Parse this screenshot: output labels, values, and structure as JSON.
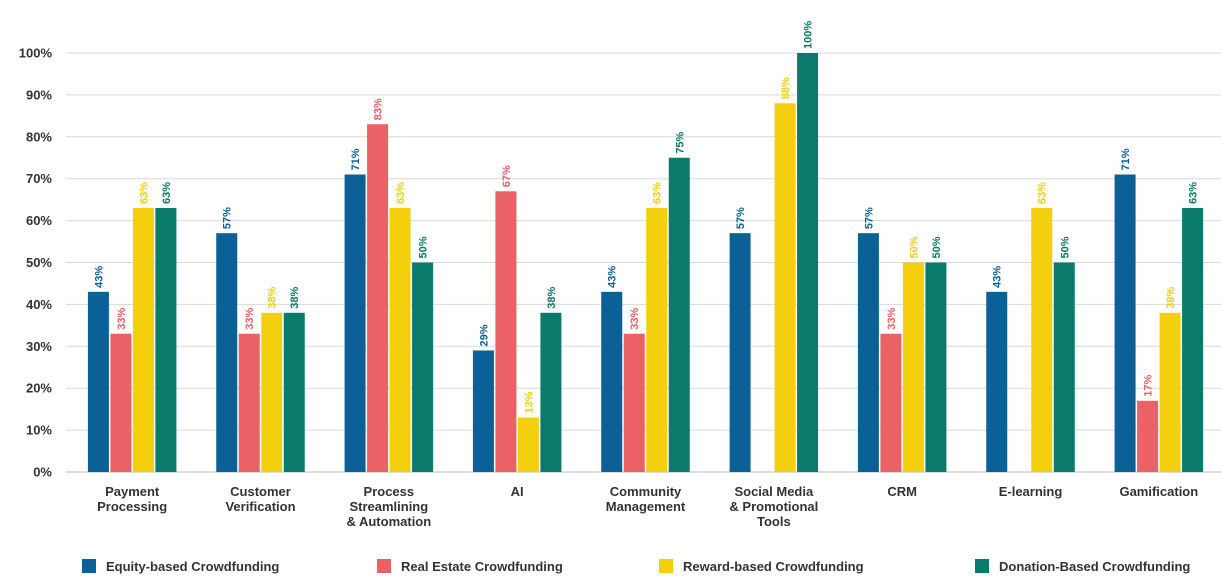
{
  "chart_data": {
    "type": "bar",
    "categories": [
      [
        "Payment",
        "Processing"
      ],
      [
        "Customer",
        "Verification"
      ],
      [
        "Process",
        "Streamlining",
        "& Automation"
      ],
      [
        "AI"
      ],
      [
        "Community",
        "Management"
      ],
      [
        "Social Media",
        "& Promotional",
        "Tools"
      ],
      [
        "CRM"
      ],
      [
        "E-learning"
      ],
      [
        "Gamification"
      ]
    ],
    "series": [
      {
        "name": "Equity-based Crowdfunding",
        "color": "#0b6196",
        "values": [
          43,
          57,
          71,
          29,
          43,
          57,
          57,
          43,
          71
        ],
        "labels": [
          "43%",
          "57%",
          "71%",
          "29%",
          "43%",
          "57%",
          "57%",
          "43%",
          "71%"
        ]
      },
      {
        "name": "Real Estate Crowdfunding",
        "color": "#ea6265",
        "values": [
          33,
          33,
          83,
          67,
          33,
          null,
          33,
          null,
          17
        ],
        "labels": [
          "33%",
          "33%",
          "83%",
          "67%",
          "33%",
          null,
          "33%",
          null,
          "17%"
        ]
      },
      {
        "name": "Reward-based Crowdfunding",
        "color": "#f4cf0e",
        "values": [
          63,
          38,
          63,
          13,
          63,
          88,
          50,
          63,
          38
        ],
        "labels": [
          "63%",
          "38%",
          "63%",
          "13%",
          "63%",
          "88%",
          "50%",
          "63%",
          "38%"
        ]
      },
      {
        "name": "Donation-Based Crowdfunding",
        "color": "#0a7a6c",
        "values": [
          63,
          38,
          50,
          38,
          75,
          100,
          50,
          50,
          63
        ],
        "labels": [
          "63%",
          "38%",
          "50%",
          "38%",
          "75%",
          "100%",
          "50%",
          "50%",
          "63%"
        ]
      }
    ],
    "yticks": [
      "0%",
      "10%",
      "20%",
      "30%",
      "40%",
      "50%",
      "60%",
      "70%",
      "80%",
      "90%",
      "100%"
    ],
    "ylim": [
      0,
      100
    ],
    "grid": true,
    "legend_position": "bottom"
  }
}
